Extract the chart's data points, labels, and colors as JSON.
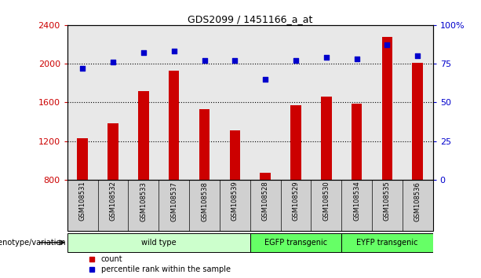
{
  "title": "GDS2099 / 1451166_a_at",
  "samples": [
    "GSM108531",
    "GSM108532",
    "GSM108533",
    "GSM108537",
    "GSM108538",
    "GSM108539",
    "GSM108528",
    "GSM108529",
    "GSM108530",
    "GSM108534",
    "GSM108535",
    "GSM108536"
  ],
  "counts": [
    1230,
    1380,
    1720,
    1930,
    1530,
    1310,
    870,
    1570,
    1660,
    1590,
    2280,
    2010
  ],
  "percentiles": [
    72,
    76,
    82,
    83,
    77,
    77,
    65,
    77,
    79,
    78,
    87,
    80
  ],
  "ylim_left": [
    800,
    2400
  ],
  "ylim_right": [
    0,
    100
  ],
  "yticks_left": [
    800,
    1200,
    1600,
    2000,
    2400
  ],
  "yticks_right": [
    0,
    25,
    50,
    75,
    100
  ],
  "groups": [
    {
      "label": "wild type",
      "start": 0,
      "end": 6,
      "color": "#ccffcc"
    },
    {
      "label": "EGFP transgenic",
      "start": 6,
      "end": 9,
      "color": "#66ff66"
    },
    {
      "label": "EYFP transgenic",
      "start": 9,
      "end": 12,
      "color": "#66ff66"
    }
  ],
  "bar_color": "#cc0000",
  "dot_color": "#0000cc",
  "bar_width": 0.35,
  "grid_color": "black",
  "grid_style": "dotted",
  "grid_linewidth": 0.8,
  "background_color": "#ffffff",
  "plot_bg": "#e8e8e8",
  "sample_box_color": "#d0d0d0",
  "wt_color": "#ccffcc",
  "egfp_color": "#66ff66",
  "eyfp_color": "#66ff66",
  "legend_count_color": "#cc0000",
  "legend_dot_color": "#0000cc",
  "ylabel_right_color": "#0000cc",
  "ylabel_left_color": "#cc0000",
  "genotype_label": "genotype/variation",
  "legend_items": [
    "count",
    "percentile rank within the sample"
  ]
}
